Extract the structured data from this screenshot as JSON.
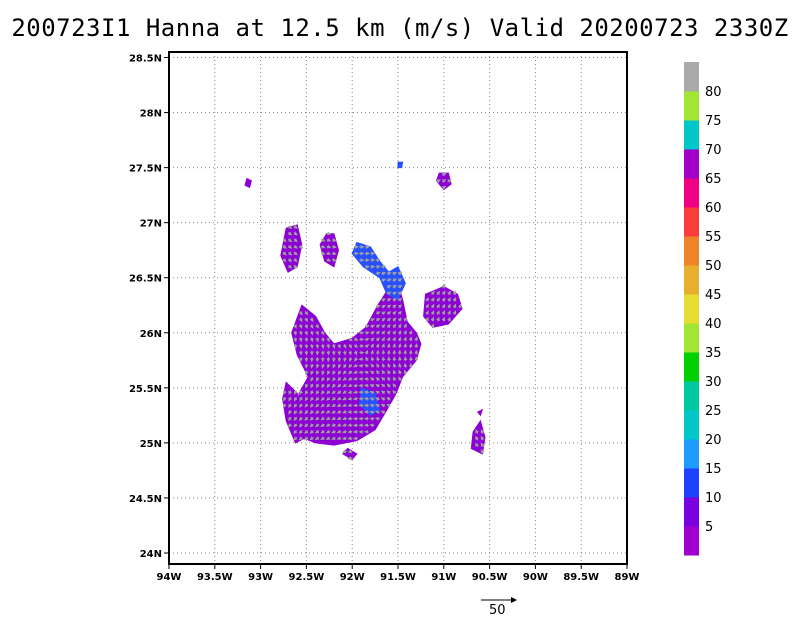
{
  "title": "200723I1 Hanna at 12.5 km (m/s) Valid 20200723 2330Z",
  "map": {
    "lon_range": [
      -94,
      -89
    ],
    "lat_range": [
      23.9,
      28.55
    ],
    "lon_ticks": [
      {
        "value": -94,
        "label": "94W"
      },
      {
        "value": -93.5,
        "label": "93.5W"
      },
      {
        "value": -93,
        "label": "93W"
      },
      {
        "value": -92.5,
        "label": "92.5W"
      },
      {
        "value": -92,
        "label": "92W"
      },
      {
        "value": -91.5,
        "label": "91.5W"
      },
      {
        "value": -91,
        "label": "91W"
      },
      {
        "value": -90.5,
        "label": "90.5W"
      },
      {
        "value": -90,
        "label": "90W"
      },
      {
        "value": -89.5,
        "label": "89.5W"
      },
      {
        "value": -89,
        "label": "89W"
      }
    ],
    "lat_ticks": [
      {
        "value": 24,
        "label": "24N"
      },
      {
        "value": 24.5,
        "label": "24.5N"
      },
      {
        "value": 25,
        "label": "25N"
      },
      {
        "value": 25.5,
        "label": "25.5N"
      },
      {
        "value": 26,
        "label": "26N"
      },
      {
        "value": 26.5,
        "label": "26.5N"
      },
      {
        "value": 27,
        "label": "27N"
      },
      {
        "value": 27.5,
        "label": "27.5N"
      },
      {
        "value": 28,
        "label": "28N"
      },
      {
        "value": 28.5,
        "label": "28.5N"
      }
    ],
    "grid": true,
    "field_color_main": "#8c00d4",
    "field_color_blue": "#2850ff",
    "vector_color": "#a0a0a0",
    "regions_main": [
      [
        [
          -92.55,
          26.25
        ],
        [
          -92.4,
          26.15
        ],
        [
          -92.3,
          26.0
        ],
        [
          -92.2,
          25.9
        ],
        [
          -92.0,
          25.95
        ],
        [
          -91.85,
          26.05
        ],
        [
          -91.72,
          26.25
        ],
        [
          -91.62,
          26.38
        ],
        [
          -91.5,
          26.45
        ],
        [
          -91.45,
          26.3
        ],
        [
          -91.4,
          26.1
        ],
        [
          -91.3,
          26.0
        ],
        [
          -91.25,
          25.9
        ],
        [
          -91.3,
          25.75
        ],
        [
          -91.45,
          25.6
        ],
        [
          -91.52,
          25.45
        ],
        [
          -91.62,
          25.3
        ],
        [
          -91.75,
          25.12
        ],
        [
          -91.95,
          25.02
        ],
        [
          -92.2,
          24.98
        ],
        [
          -92.4,
          25.0
        ],
        [
          -92.55,
          25.05
        ],
        [
          -92.62,
          25.2
        ],
        [
          -92.58,
          25.45
        ],
        [
          -92.48,
          25.6
        ],
        [
          -92.6,
          25.8
        ],
        [
          -92.66,
          26.0
        ]
      ],
      [
        [
          -92.72,
          25.55
        ],
        [
          -92.6,
          25.45
        ],
        [
          -92.55,
          25.2
        ],
        [
          -92.5,
          25.05
        ],
        [
          -92.62,
          25.0
        ],
        [
          -92.72,
          25.2
        ],
        [
          -92.76,
          25.4
        ]
      ],
      [
        [
          -91.2,
          26.35
        ],
        [
          -91.0,
          26.42
        ],
        [
          -90.85,
          26.35
        ],
        [
          -90.8,
          26.22
        ],
        [
          -90.95,
          26.08
        ],
        [
          -91.12,
          26.05
        ],
        [
          -91.22,
          26.15
        ]
      ],
      [
        [
          -92.72,
          26.95
        ],
        [
          -92.6,
          26.98
        ],
        [
          -92.55,
          26.8
        ],
        [
          -92.6,
          26.6
        ],
        [
          -92.7,
          26.55
        ],
        [
          -92.78,
          26.7
        ]
      ],
      [
        [
          -92.28,
          26.9
        ],
        [
          -92.2,
          26.9
        ],
        [
          -92.15,
          26.75
        ],
        [
          -92.2,
          26.6
        ],
        [
          -92.3,
          26.65
        ],
        [
          -92.35,
          26.8
        ]
      ],
      [
        [
          -90.68,
          25.1
        ],
        [
          -90.6,
          25.2
        ],
        [
          -90.55,
          25.05
        ],
        [
          -90.58,
          24.9
        ],
        [
          -90.7,
          24.95
        ]
      ],
      [
        [
          -91.05,
          27.45
        ],
        [
          -90.95,
          27.45
        ],
        [
          -90.92,
          27.35
        ],
        [
          -91.0,
          27.3
        ],
        [
          -91.08,
          27.38
        ]
      ],
      [
        [
          -93.15,
          27.4
        ],
        [
          -93.1,
          27.38
        ],
        [
          -93.12,
          27.32
        ],
        [
          -93.17,
          27.34
        ]
      ],
      [
        [
          -90.6,
          25.25
        ],
        [
          -90.58,
          25.3
        ],
        [
          -90.63,
          25.28
        ]
      ],
      [
        [
          -92.1,
          24.9
        ],
        [
          -92.0,
          24.85
        ],
        [
          -91.95,
          24.9
        ],
        [
          -92.05,
          24.95
        ]
      ]
    ],
    "regions_blue": [
      [
        [
          -91.95,
          26.82
        ],
        [
          -91.8,
          26.78
        ],
        [
          -91.7,
          26.65
        ],
        [
          -91.6,
          26.55
        ],
        [
          -91.5,
          26.6
        ],
        [
          -91.42,
          26.45
        ],
        [
          -91.5,
          26.3
        ],
        [
          -91.62,
          26.35
        ],
        [
          -91.7,
          26.5
        ],
        [
          -91.88,
          26.6
        ],
        [
          -92.0,
          26.72
        ]
      ],
      [
        [
          -91.9,
          25.5
        ],
        [
          -91.75,
          25.45
        ],
        [
          -91.7,
          25.3
        ],
        [
          -91.8,
          25.25
        ],
        [
          -91.92,
          25.35
        ]
      ],
      [
        [
          -91.5,
          27.55
        ],
        [
          -91.45,
          27.55
        ],
        [
          -91.46,
          27.5
        ],
        [
          -91.5,
          27.5
        ]
      ]
    ]
  },
  "colorbar": {
    "labels": [
      "5",
      "10",
      "15",
      "20",
      "25",
      "30",
      "35",
      "40",
      "45",
      "50",
      "55",
      "60",
      "65",
      "70",
      "75",
      "80"
    ],
    "colors": [
      "#9f00d0",
      "#7b00e0",
      "#2040ff",
      "#1e9bff",
      "#00c8c8",
      "#00c8a0",
      "#00d000",
      "#a0e632",
      "#e6dc32",
      "#e6af2d",
      "#f08228",
      "#fa3c3c",
      "#f00082",
      "#a000c8",
      "#00c8c8",
      "#a0e632",
      "#aaaaaa"
    ]
  },
  "reference_vector": {
    "label": "50"
  }
}
